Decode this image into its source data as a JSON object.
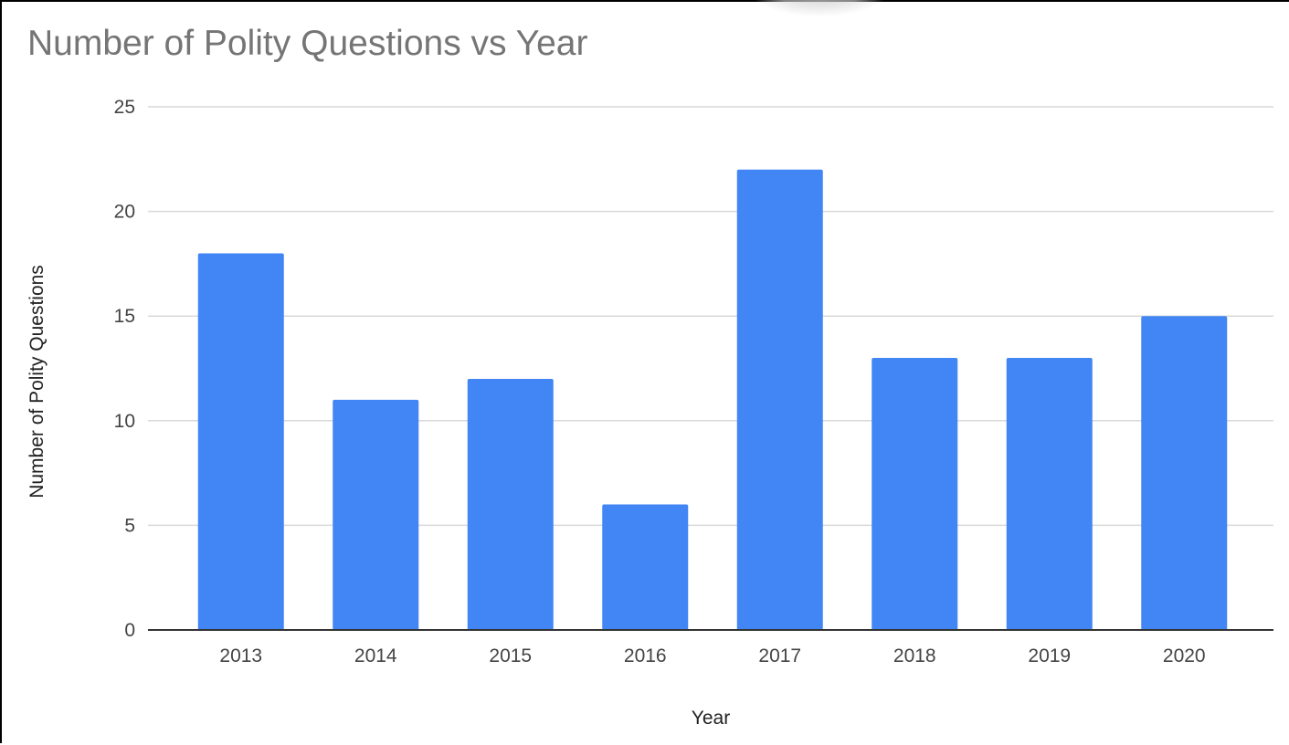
{
  "chart_data": {
    "type": "bar",
    "title": "Number of Polity Questions vs Year",
    "xlabel": "Year",
    "ylabel": "Number of Polity Questions",
    "categories": [
      "2013",
      "2014",
      "2015",
      "2016",
      "2017",
      "2018",
      "2019",
      "2020"
    ],
    "values": [
      18,
      11,
      12,
      6,
      22,
      13,
      13,
      15
    ],
    "ylim": [
      0,
      25
    ],
    "yticks": [
      0,
      5,
      10,
      15,
      20,
      25
    ],
    "grid": true,
    "legend": "none",
    "colors": {
      "bar": "#4285f4",
      "gridline": "#d9d9d9",
      "baseline": "#333333",
      "title": "#757575"
    }
  }
}
